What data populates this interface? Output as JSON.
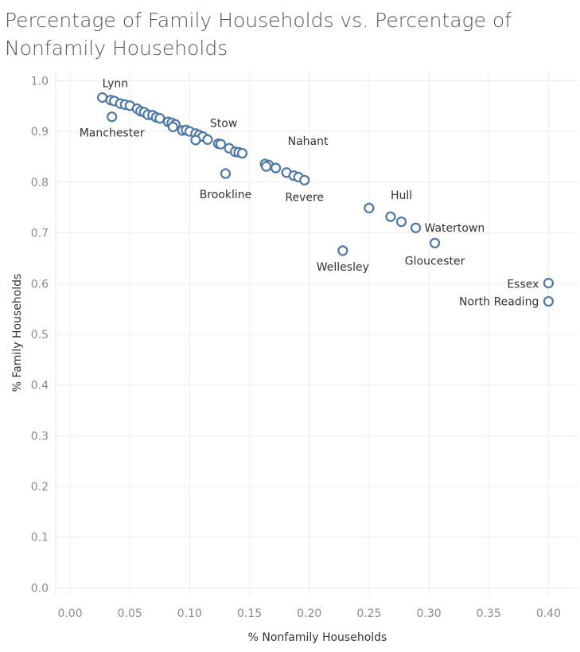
{
  "chart_data": {
    "type": "scatter",
    "title": "Percentage of  Family Households vs. Percentage of Nonfamily Households",
    "xlabel": "% Nonfamily Households",
    "ylabel": "% Family Households",
    "xlim": [
      -0.012,
      0.425
    ],
    "ylim": [
      -0.015,
      1.018
    ],
    "x_ticks": [
      "0.00",
      "0.05",
      "0.10",
      "0.15",
      "0.20",
      "0.25",
      "0.30",
      "0.35",
      "0.40"
    ],
    "y_ticks": [
      "0.0",
      "0.1",
      "0.2",
      "0.3",
      "0.4",
      "0.5",
      "0.6",
      "0.7",
      "0.8",
      "0.9",
      "1.0"
    ],
    "grid": true,
    "color": "#4e79a7",
    "points": [
      {
        "x": 0.027,
        "y": 0.967,
        "label": "Lynn"
      },
      {
        "x": 0.034,
        "y": 0.962,
        "label": ""
      },
      {
        "x": 0.037,
        "y": 0.96,
        "label": ""
      },
      {
        "x": 0.042,
        "y": 0.955,
        "label": ""
      },
      {
        "x": 0.046,
        "y": 0.953,
        "label": ""
      },
      {
        "x": 0.05,
        "y": 0.951,
        "label": ""
      },
      {
        "x": 0.035,
        "y": 0.929,
        "label": "Manchester"
      },
      {
        "x": 0.056,
        "y": 0.945,
        "label": ""
      },
      {
        "x": 0.059,
        "y": 0.94,
        "label": ""
      },
      {
        "x": 0.062,
        "y": 0.938,
        "label": ""
      },
      {
        "x": 0.065,
        "y": 0.933,
        "label": ""
      },
      {
        "x": 0.069,
        "y": 0.932,
        "label": ""
      },
      {
        "x": 0.072,
        "y": 0.928,
        "label": ""
      },
      {
        "x": 0.075,
        "y": 0.926,
        "label": ""
      },
      {
        "x": 0.082,
        "y": 0.919,
        "label": ""
      },
      {
        "x": 0.085,
        "y": 0.917,
        "label": ""
      },
      {
        "x": 0.088,
        "y": 0.914,
        "label": ""
      },
      {
        "x": 0.086,
        "y": 0.909,
        "label": ""
      },
      {
        "x": 0.094,
        "y": 0.902,
        "label": ""
      },
      {
        "x": 0.097,
        "y": 0.903,
        "label": ""
      },
      {
        "x": 0.1,
        "y": 0.9,
        "label": ""
      },
      {
        "x": 0.105,
        "y": 0.896,
        "label": "Stow"
      },
      {
        "x": 0.108,
        "y": 0.893,
        "label": ""
      },
      {
        "x": 0.111,
        "y": 0.89,
        "label": ""
      },
      {
        "x": 0.115,
        "y": 0.884,
        "label": ""
      },
      {
        "x": 0.105,
        "y": 0.883,
        "label": ""
      },
      {
        "x": 0.124,
        "y": 0.876,
        "label": ""
      },
      {
        "x": 0.126,
        "y": 0.875,
        "label": ""
      },
      {
        "x": 0.133,
        "y": 0.867,
        "label": ""
      },
      {
        "x": 0.138,
        "y": 0.86,
        "label": ""
      },
      {
        "x": 0.141,
        "y": 0.859,
        "label": ""
      },
      {
        "x": 0.144,
        "y": 0.857,
        "label": ""
      },
      {
        "x": 0.13,
        "y": 0.817,
        "label": "Brookline"
      },
      {
        "x": 0.163,
        "y": 0.836,
        "label": ""
      },
      {
        "x": 0.166,
        "y": 0.834,
        "label": "Nahant"
      },
      {
        "x": 0.164,
        "y": 0.831,
        "label": ""
      },
      {
        "x": 0.172,
        "y": 0.828,
        "label": ""
      },
      {
        "x": 0.181,
        "y": 0.819,
        "label": ""
      },
      {
        "x": 0.187,
        "y": 0.813,
        "label": ""
      },
      {
        "x": 0.191,
        "y": 0.81,
        "label": ""
      },
      {
        "x": 0.196,
        "y": 0.804,
        "label": "Revere"
      },
      {
        "x": 0.25,
        "y": 0.749,
        "label": ""
      },
      {
        "x": 0.268,
        "y": 0.732,
        "label": "Hull"
      },
      {
        "x": 0.277,
        "y": 0.722,
        "label": ""
      },
      {
        "x": 0.289,
        "y": 0.71,
        "label": "Watertown"
      },
      {
        "x": 0.305,
        "y": 0.68,
        "label": "Gloucester"
      },
      {
        "x": 0.228,
        "y": 0.665,
        "label": "Wellesley"
      },
      {
        "x": 0.4,
        "y": 0.601,
        "label": "Essex"
      },
      {
        "x": 0.4,
        "y": 0.565,
        "label": "North Reading"
      }
    ]
  }
}
